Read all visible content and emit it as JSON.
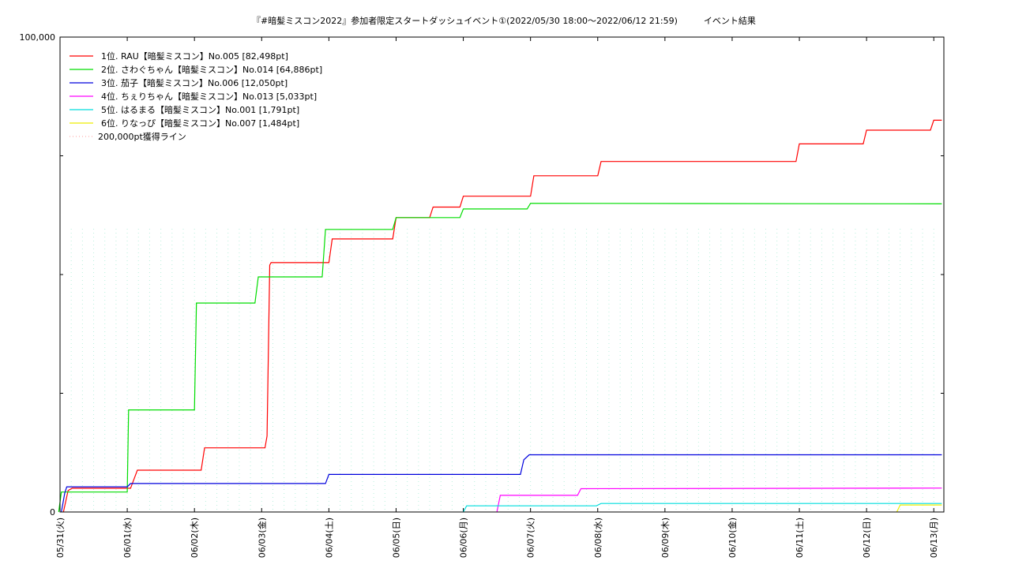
{
  "chart_data": {
    "type": "line",
    "title": "『#暗髪ミスコン2022』参加者限定スタートダッシュイベント①(2022/05/30 18:00〜2022/06/12 21:59)　　　イベント結果",
    "xlabel": "",
    "ylabel": "",
    "ylim": [
      0,
      100000
    ],
    "xlim": [
      0,
      13.15
    ],
    "y_ticks": [
      {
        "value": 0,
        "label": "0"
      },
      {
        "value": 25000,
        "label": ""
      },
      {
        "value": 50000,
        "label": ""
      },
      {
        "value": 75000,
        "label": ""
      },
      {
        "value": 100000,
        "label": "100,000"
      }
    ],
    "x_ticks": [
      {
        "value": 0,
        "label": "05/31(火)"
      },
      {
        "value": 1,
        "label": "06/01(水)"
      },
      {
        "value": 2,
        "label": "06/02(木)"
      },
      {
        "value": 3,
        "label": "06/03(金)"
      },
      {
        "value": 4,
        "label": "06/04(土)"
      },
      {
        "value": 5,
        "label": "06/05(日)"
      },
      {
        "value": 6,
        "label": "06/06(月)"
      },
      {
        "value": 7,
        "label": "06/07(火)"
      },
      {
        "value": 8,
        "label": "06/08(水)"
      },
      {
        "value": 9,
        "label": "06/09(木)"
      },
      {
        "value": 10,
        "label": "06/10(金)"
      },
      {
        "value": 11,
        "label": "06/11(土)"
      },
      {
        "value": 12,
        "label": "06/12(日)"
      },
      {
        "value": 13,
        "label": "06/13(月)"
      }
    ],
    "grid": true,
    "legend": "top-left",
    "series": [
      {
        "name": "1位. RAU【暗髪ミスコン】No.005 [82,498pt]",
        "color": "#ff0000",
        "points": [
          [
            0.05,
            0
          ],
          [
            0.12,
            4500
          ],
          [
            0.18,
            5000
          ],
          [
            1.05,
            5000
          ],
          [
            1.15,
            8800
          ],
          [
            2.1,
            8800
          ],
          [
            2.15,
            13500
          ],
          [
            3.05,
            13500
          ],
          [
            3.08,
            16000
          ],
          [
            3.12,
            52000
          ],
          [
            3.14,
            52500
          ],
          [
            4.0,
            52500
          ],
          [
            4.05,
            57500
          ],
          [
            4.95,
            57500
          ],
          [
            5.0,
            62000
          ],
          [
            5.5,
            62000
          ],
          [
            5.55,
            64200
          ],
          [
            5.95,
            64200
          ],
          [
            6.0,
            66500
          ],
          [
            7.0,
            66500
          ],
          [
            7.05,
            70800
          ],
          [
            8.0,
            70800
          ],
          [
            8.05,
            73800
          ],
          [
            10.95,
            73800
          ],
          [
            11.0,
            77500
          ],
          [
            11.95,
            77500
          ],
          [
            12.0,
            80400
          ],
          [
            12.95,
            80400
          ],
          [
            13.0,
            82498
          ],
          [
            13.12,
            82498
          ]
        ]
      },
      {
        "name": "2位. さわぐちゃん【暗髪ミスコン】No.014 [64,886pt]",
        "color": "#00dd00",
        "points": [
          [
            -0.02,
            0
          ],
          [
            0.02,
            4200
          ],
          [
            1.0,
            4200
          ],
          [
            1.02,
            21500
          ],
          [
            2.0,
            21500
          ],
          [
            2.03,
            44000
          ],
          [
            2.9,
            44000
          ],
          [
            2.95,
            49500
          ],
          [
            3.9,
            49500
          ],
          [
            3.95,
            59500
          ],
          [
            4.95,
            59500
          ],
          [
            5.0,
            62000
          ],
          [
            5.95,
            62000
          ],
          [
            6.0,
            63800
          ],
          [
            6.95,
            63800
          ],
          [
            7.0,
            65000
          ],
          [
            13.12,
            64886
          ]
        ]
      },
      {
        "name": "3位. 茄子【暗髪ミスコン】No.006 [12,050pt]",
        "color": "#0000dd",
        "points": [
          [
            0.02,
            0
          ],
          [
            0.07,
            4000
          ],
          [
            0.1,
            5300
          ],
          [
            1.0,
            5300
          ],
          [
            1.05,
            6000
          ],
          [
            3.95,
            6000
          ],
          [
            4.0,
            7900
          ],
          [
            6.85,
            7900
          ],
          [
            6.9,
            11000
          ],
          [
            6.98,
            12050
          ],
          [
            13.12,
            12050
          ]
        ]
      },
      {
        "name": "4位. ちぇりちゃん【暗髪ミスコン】No.013 [5,033pt]",
        "color": "#ff00ff",
        "points": [
          [
            6.5,
            0
          ],
          [
            6.55,
            3500
          ],
          [
            7.7,
            3500
          ],
          [
            7.75,
            4900
          ],
          [
            13.12,
            5033
          ]
        ]
      },
      {
        "name": "5位. はるまる【暗髪ミスコン】No.001 [1,791pt]",
        "color": "#00dddd",
        "points": [
          [
            6.0,
            0
          ],
          [
            6.05,
            1300
          ],
          [
            7.98,
            1300
          ],
          [
            8.05,
            1791
          ],
          [
            13.12,
            1791
          ]
        ]
      },
      {
        "name": "6位. りなっぴ【暗髪ミスコン】No.007 [1,484pt]",
        "color": "#eeee00",
        "points": [
          [
            12.45,
            0
          ],
          [
            12.5,
            1484
          ],
          [
            13.12,
            1484
          ]
        ]
      },
      {
        "name": "200,000pt獲得ライン",
        "color": "#ff9999",
        "dashed": true,
        "points": []
      }
    ]
  }
}
